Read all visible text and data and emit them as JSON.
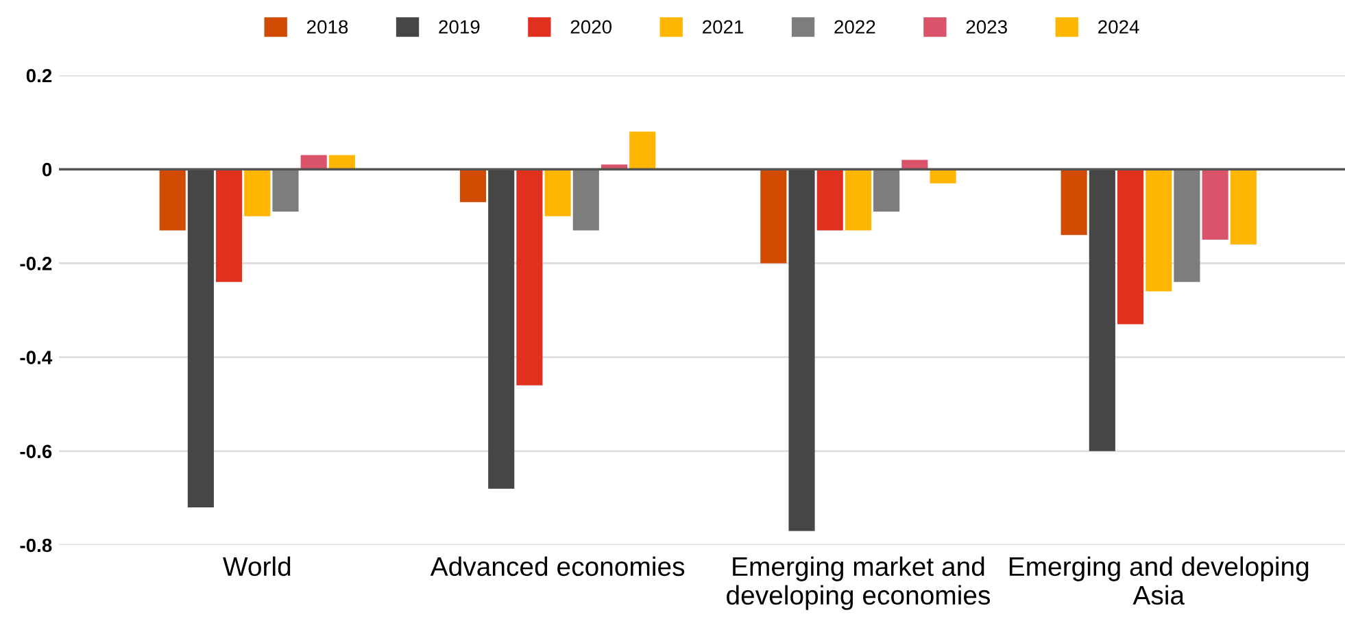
{
  "chart_data": {
    "type": "bar",
    "categories": [
      "World",
      "Advanced economies",
      "Emerging market and developing economies",
      "Emerging and developing Asia"
    ],
    "series": [
      {
        "name": "2018",
        "color": "#d04a02",
        "values": [
          -0.13,
          -0.07,
          -0.2,
          -0.14
        ]
      },
      {
        "name": "2019",
        "color": "#464646",
        "values": [
          -0.72,
          -0.68,
          -0.77,
          -0.6
        ]
      },
      {
        "name": "2020",
        "color": "#e0301e",
        "values": [
          -0.24,
          -0.46,
          -0.13,
          -0.33
        ]
      },
      {
        "name": "2021",
        "color": "#ffb600",
        "values": [
          -0.1,
          -0.1,
          -0.13,
          -0.26
        ]
      },
      {
        "name": "2022",
        "color": "#7d7d7d",
        "values": [
          -0.09,
          -0.13,
          -0.09,
          -0.24
        ]
      },
      {
        "name": "2023",
        "color": "#db536a",
        "values": [
          0.03,
          0.01,
          0.02,
          -0.15
        ]
      },
      {
        "name": "2024",
        "color": "#ffb600",
        "values": [
          0.03,
          0.08,
          -0.03,
          -0.16
        ]
      }
    ],
    "ylim": [
      -0.8,
      0.2
    ],
    "yticks": [
      -0.8,
      -0.6,
      -0.4,
      -0.2,
      0,
      0.2
    ],
    "grid": "y",
    "legend": "top"
  }
}
